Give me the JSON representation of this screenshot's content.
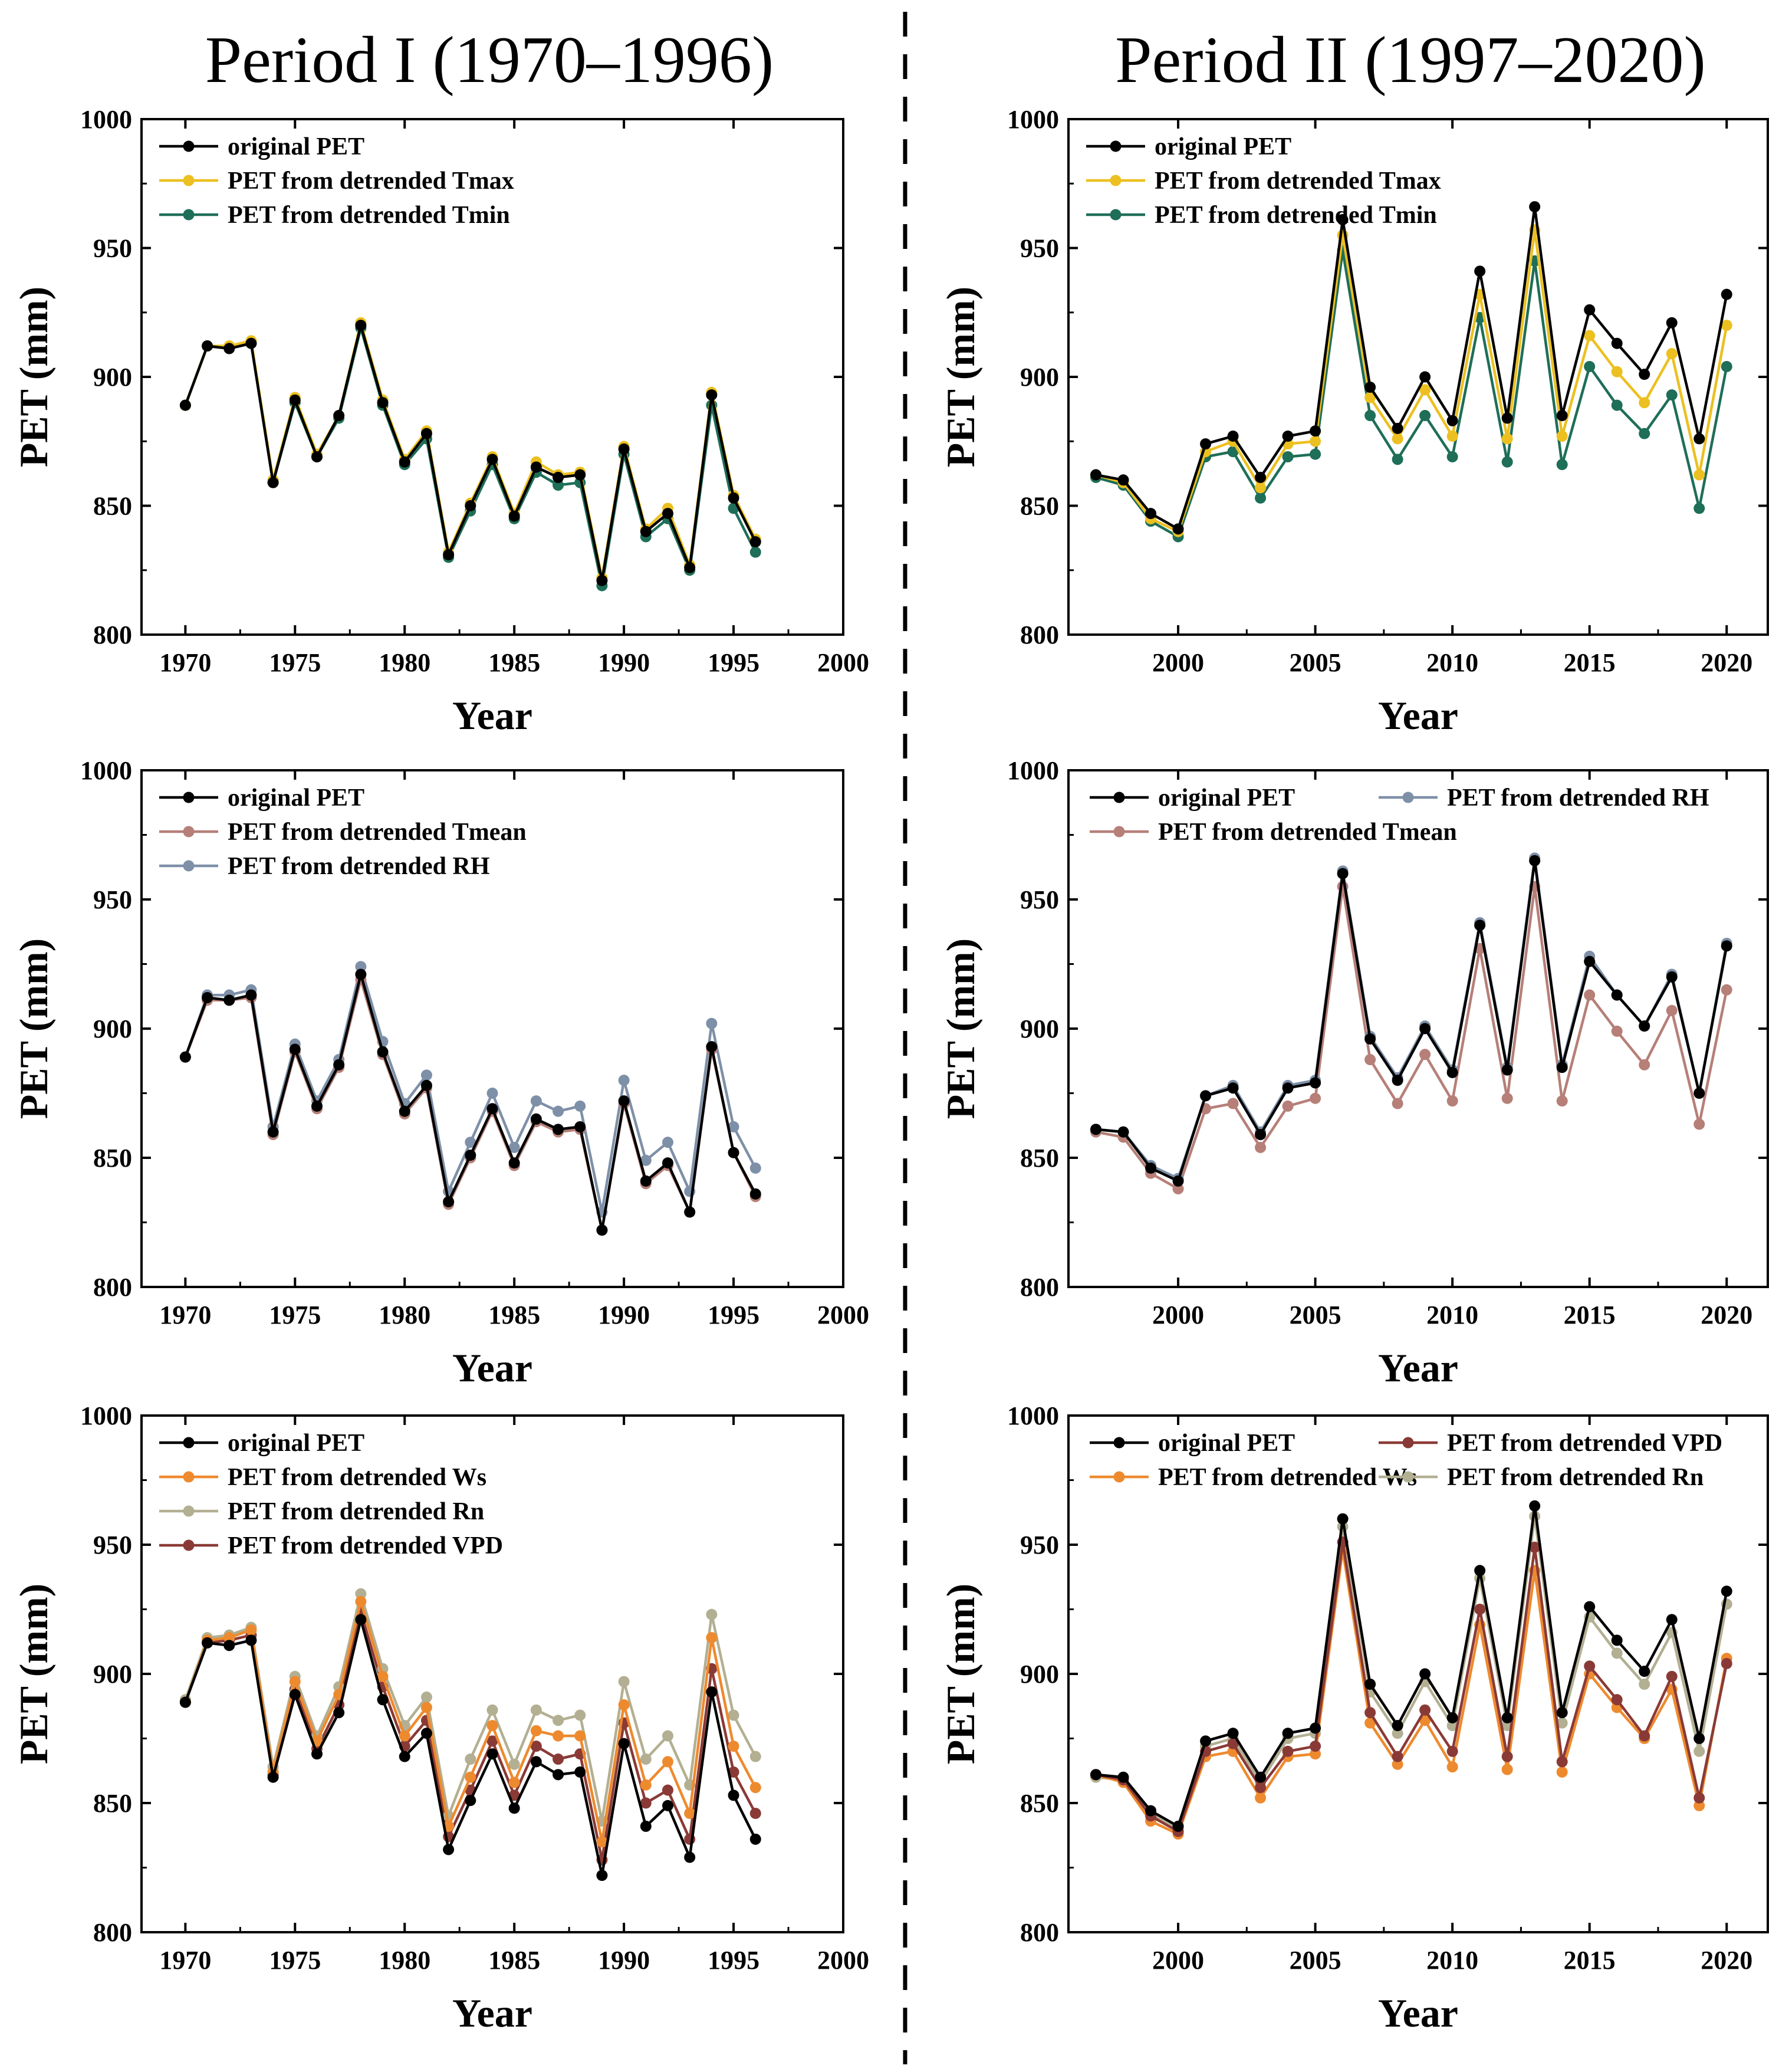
{
  "figure": {
    "period_titles": [
      "Period I (1970–1996)",
      "Period II (1997–2020)"
    ],
    "separator": "dashed vertical line between periods"
  },
  "colors": {
    "original_pet": "#000000",
    "tmax": "#ECC020",
    "tmin": "#1E6E58",
    "tmean": "#B67F78",
    "rh": "#7E90A8",
    "ws": "#EE8A2E",
    "rn": "#B3AF92",
    "vpd": "#8A3A36",
    "axes": "#000000"
  },
  "chart_data": [
    {
      "id": "p1-top",
      "type": "line",
      "title": "Period I (1970–1996)",
      "xlabel": "Year",
      "ylabel": "PET (mm)",
      "xlim": [
        1968,
        2000
      ],
      "ylim": [
        800,
        1000
      ],
      "xticks": [
        1970,
        1975,
        1980,
        1985,
        1990,
        1995,
        2000
      ],
      "yticks": [
        800,
        850,
        900,
        950,
        1000
      ],
      "legend_position": "top-left",
      "legend_columns": 1,
      "x": [
        1970,
        1971,
        1972,
        1973,
        1974,
        1975,
        1976,
        1977,
        1978,
        1979,
        1980,
        1981,
        1982,
        1983,
        1984,
        1985,
        1986,
        1987,
        1988,
        1989,
        1990,
        1991,
        1992,
        1993,
        1994,
        1995,
        1996
      ],
      "series": [
        {
          "name": "original PET",
          "color_key": "original_pet",
          "values": [
            889,
            912,
            911,
            913,
            859,
            891,
            869,
            885,
            920,
            890,
            867,
            878,
            831,
            850,
            868,
            846,
            865,
            861,
            862,
            821,
            872,
            840,
            847,
            826,
            893,
            853,
            836
          ]
        },
        {
          "name": "PET from detrended Tmax",
          "color_key": "tmax",
          "values": [
            889,
            912,
            912,
            914,
            860,
            892,
            870,
            885,
            921,
            891,
            868,
            879,
            832,
            851,
            869,
            847,
            867,
            862,
            863,
            822,
            873,
            841,
            849,
            827,
            894,
            854,
            837
          ]
        },
        {
          "name": "PET from detrended Tmin",
          "color_key": "tmin",
          "values": [
            889,
            912,
            911,
            913,
            859,
            890,
            869,
            884,
            919,
            889,
            866,
            876,
            830,
            848,
            866,
            845,
            863,
            858,
            859,
            819,
            870,
            838,
            845,
            825,
            889,
            849,
            832
          ]
        }
      ]
    },
    {
      "id": "p2-top",
      "type": "line",
      "title": "Period II (1997–2020)",
      "xlabel": "Year",
      "ylabel": "PET (mm)",
      "xlim": [
        1996,
        2021.5
      ],
      "ylim": [
        800,
        1000
      ],
      "xticks": [
        2000,
        2005,
        2010,
        2015,
        2020
      ],
      "yticks": [
        800,
        850,
        900,
        950,
        1000
      ],
      "legend_position": "top-left",
      "legend_columns": 1,
      "x": [
        1997,
        1998,
        1999,
        2000,
        2001,
        2002,
        2003,
        2004,
        2005,
        2006,
        2007,
        2008,
        2009,
        2010,
        2011,
        2012,
        2013,
        2014,
        2015,
        2016,
        2017,
        2018,
        2019,
        2020
      ],
      "series": [
        {
          "name": "original PET",
          "color_key": "original_pet",
          "values": [
            862,
            860,
            847,
            841,
            874,
            877,
            861,
            877,
            879,
            961,
            896,
            880,
            900,
            883,
            941,
            884,
            966,
            885,
            926,
            913,
            901,
            921,
            876,
            932
          ]
        },
        {
          "name": "PET from detrended Tmax",
          "color_key": "tmax",
          "values": [
            862,
            859,
            845,
            840,
            871,
            875,
            857,
            874,
            875,
            955,
            892,
            876,
            895,
            877,
            932,
            876,
            957,
            877,
            916,
            902,
            890,
            909,
            862,
            920
          ]
        },
        {
          "name": "PET from detrended Tmin",
          "color_key": "tmin",
          "values": [
            861,
            858,
            844,
            838,
            869,
            871,
            853,
            869,
            870,
            949,
            885,
            868,
            885,
            869,
            923,
            867,
            945,
            866,
            904,
            889,
            878,
            893,
            849,
            904
          ]
        }
      ]
    },
    {
      "id": "p1-mid",
      "type": "line",
      "title": "Period I (1970–1996)",
      "xlabel": "Year",
      "ylabel": "PET (mm)",
      "xlim": [
        1968,
        2000
      ],
      "ylim": [
        800,
        1000
      ],
      "xticks": [
        1970,
        1975,
        1980,
        1985,
        1990,
        1995,
        2000
      ],
      "yticks": [
        800,
        850,
        900,
        950,
        1000
      ],
      "legend_position": "top-left",
      "legend_columns": 1,
      "x": [
        1970,
        1971,
        1972,
        1973,
        1974,
        1975,
        1976,
        1977,
        1978,
        1979,
        1980,
        1981,
        1982,
        1983,
        1984,
        1985,
        1986,
        1987,
        1988,
        1989,
        1990,
        1991,
        1992,
        1993,
        1994,
        1995,
        1996
      ],
      "series": [
        {
          "name": "original PET",
          "color_key": "original_pet",
          "values": [
            889,
            912,
            911,
            913,
            860,
            892,
            870,
            886,
            921,
            891,
            868,
            878,
            833,
            851,
            869,
            848,
            865,
            861,
            862,
            822,
            872,
            841,
            848,
            829,
            893,
            852,
            836
          ]
        },
        {
          "name": "PET from detrended Tmean",
          "color_key": "tmean",
          "values": [
            889,
            911,
            911,
            912,
            859,
            891,
            869,
            885,
            919,
            890,
            867,
            877,
            832,
            850,
            868,
            847,
            864,
            860,
            861,
            822,
            871,
            840,
            847,
            829,
            892,
            852,
            835
          ]
        },
        {
          "name": "PET from detrended RH",
          "color_key": "rh",
          "values": [
            889,
            913,
            913,
            915,
            862,
            894,
            872,
            888,
            924,
            895,
            871,
            882,
            837,
            856,
            875,
            854,
            872,
            868,
            870,
            829,
            880,
            849,
            856,
            837,
            902,
            862,
            846
          ]
        }
      ]
    },
    {
      "id": "p2-mid",
      "type": "line",
      "title": "Period II (1997–2020)",
      "xlabel": "Year",
      "ylabel": "PET (mm)",
      "xlim": [
        1996,
        2021.5
      ],
      "ylim": [
        800,
        1000
      ],
      "xticks": [
        2000,
        2005,
        2010,
        2015,
        2020
      ],
      "yticks": [
        800,
        850,
        900,
        950,
        1000
      ],
      "legend_position": "top",
      "legend_columns": 2,
      "x": [
        1997,
        1998,
        1999,
        2000,
        2001,
        2002,
        2003,
        2004,
        2005,
        2006,
        2007,
        2008,
        2009,
        2010,
        2011,
        2012,
        2013,
        2014,
        2015,
        2016,
        2017,
        2018,
        2019,
        2020
      ],
      "series": [
        {
          "name": "original PET",
          "color_key": "original_pet",
          "values": [
            861,
            860,
            846,
            841,
            874,
            877,
            859,
            877,
            879,
            960,
            896,
            880,
            900,
            883,
            940,
            884,
            965,
            885,
            926,
            913,
            901,
            920,
            875,
            932
          ]
        },
        {
          "name": "PET from detrended RH",
          "color_key": "rh",
          "values": [
            861,
            860,
            847,
            842,
            874,
            878,
            860,
            878,
            880,
            961,
            897,
            881,
            901,
            884,
            941,
            885,
            966,
            886,
            928,
            913,
            901,
            921,
            875,
            933
          ]
        },
        {
          "name": "PET from detrended Tmean",
          "color_key": "tmean",
          "values": [
            860,
            858,
            844,
            838,
            869,
            871,
            854,
            870,
            873,
            955,
            888,
            871,
            890,
            872,
            931,
            873,
            955,
            872,
            913,
            899,
            886,
            907,
            863,
            915
          ]
        }
      ]
    },
    {
      "id": "p1-bot",
      "type": "line",
      "title": "Period I (1970–1996)",
      "xlabel": "Year",
      "ylabel": "PET (mm)",
      "xlim": [
        1968,
        2000
      ],
      "ylim": [
        800,
        1000
      ],
      "xticks": [
        1970,
        1975,
        1980,
        1985,
        1990,
        1995,
        2000
      ],
      "yticks": [
        800,
        850,
        900,
        950,
        1000
      ],
      "legend_position": "top-left",
      "legend_columns": 1,
      "x": [
        1970,
        1971,
        1972,
        1973,
        1974,
        1975,
        1976,
        1977,
        1978,
        1979,
        1980,
        1981,
        1982,
        1983,
        1984,
        1985,
        1986,
        1987,
        1988,
        1989,
        1990,
        1991,
        1992,
        1993,
        1994,
        1995,
        1996
      ],
      "series": [
        {
          "name": "original PET",
          "color_key": "original_pet",
          "values": [
            889,
            912,
            911,
            913,
            860,
            892,
            869,
            885,
            921,
            890,
            868,
            877,
            832,
            851,
            869,
            848,
            866,
            861,
            862,
            822,
            873,
            841,
            849,
            829,
            893,
            853,
            836
          ]
        },
        {
          "name": "PET from detrended Ws",
          "color_key": "ws",
          "values": [
            889,
            913,
            914,
            917,
            862,
            897,
            874,
            892,
            928,
            899,
            876,
            887,
            841,
            860,
            880,
            858,
            878,
            876,
            876,
            835,
            888,
            857,
            866,
            846,
            914,
            872,
            856
          ]
        },
        {
          "name": "PET from detrended Rn",
          "color_key": "rn",
          "values": [
            890,
            914,
            915,
            918,
            864,
            899,
            876,
            895,
            931,
            902,
            880,
            891,
            845,
            867,
            886,
            865,
            886,
            882,
            884,
            843,
            897,
            867,
            876,
            857,
            923,
            884,
            868
          ]
        },
        {
          "name": "PET from detrended VPD",
          "color_key": "vpd",
          "values": [
            889,
            912,
            913,
            915,
            861,
            894,
            871,
            888,
            924,
            895,
            872,
            882,
            837,
            855,
            874,
            853,
            872,
            867,
            869,
            828,
            881,
            850,
            855,
            836,
            902,
            862,
            846
          ]
        }
      ]
    },
    {
      "id": "p2-bot",
      "type": "line",
      "title": "Period II (1997–2020)",
      "xlabel": "Year",
      "ylabel": "PET (mm)",
      "xlim": [
        1996,
        2021.5
      ],
      "ylim": [
        800,
        1000
      ],
      "xticks": [
        2000,
        2005,
        2010,
        2015,
        2020
      ],
      "yticks": [
        800,
        850,
        900,
        950,
        1000
      ],
      "legend_position": "top",
      "legend_columns": 2,
      "x": [
        1997,
        1998,
        1999,
        2000,
        2001,
        2002,
        2003,
        2004,
        2005,
        2006,
        2007,
        2008,
        2009,
        2010,
        2011,
        2012,
        2013,
        2014,
        2015,
        2016,
        2017,
        2018,
        2019,
        2020
      ],
      "series": [
        {
          "name": "original PET",
          "color_key": "original_pet",
          "values": [
            861,
            860,
            847,
            841,
            874,
            877,
            860,
            877,
            879,
            960,
            896,
            880,
            900,
            883,
            940,
            883,
            965,
            885,
            926,
            913,
            901,
            921,
            875,
            932
          ]
        },
        {
          "name": "PET from detrended VPD",
          "color_key": "vpd",
          "values": [
            861,
            859,
            845,
            839,
            870,
            873,
            856,
            870,
            872,
            951,
            885,
            868,
            886,
            870,
            925,
            868,
            949,
            866,
            903,
            890,
            876,
            899,
            852,
            904
          ]
        },
        {
          "name": "PET from detrended Ws",
          "color_key": "ws",
          "values": [
            861,
            858,
            843,
            838,
            868,
            870,
            852,
            868,
            869,
            948,
            881,
            865,
            882,
            864,
            919,
            863,
            940,
            862,
            900,
            887,
            875,
            894,
            849,
            906
          ]
        },
        {
          "name": "PET from detrended Rn",
          "color_key": "rn",
          "values": [
            860,
            859,
            846,
            840,
            872,
            875,
            858,
            875,
            877,
            957,
            893,
            877,
            897,
            880,
            937,
            880,
            961,
            881,
            922,
            908,
            896,
            916,
            870,
            927
          ]
        }
      ]
    }
  ]
}
